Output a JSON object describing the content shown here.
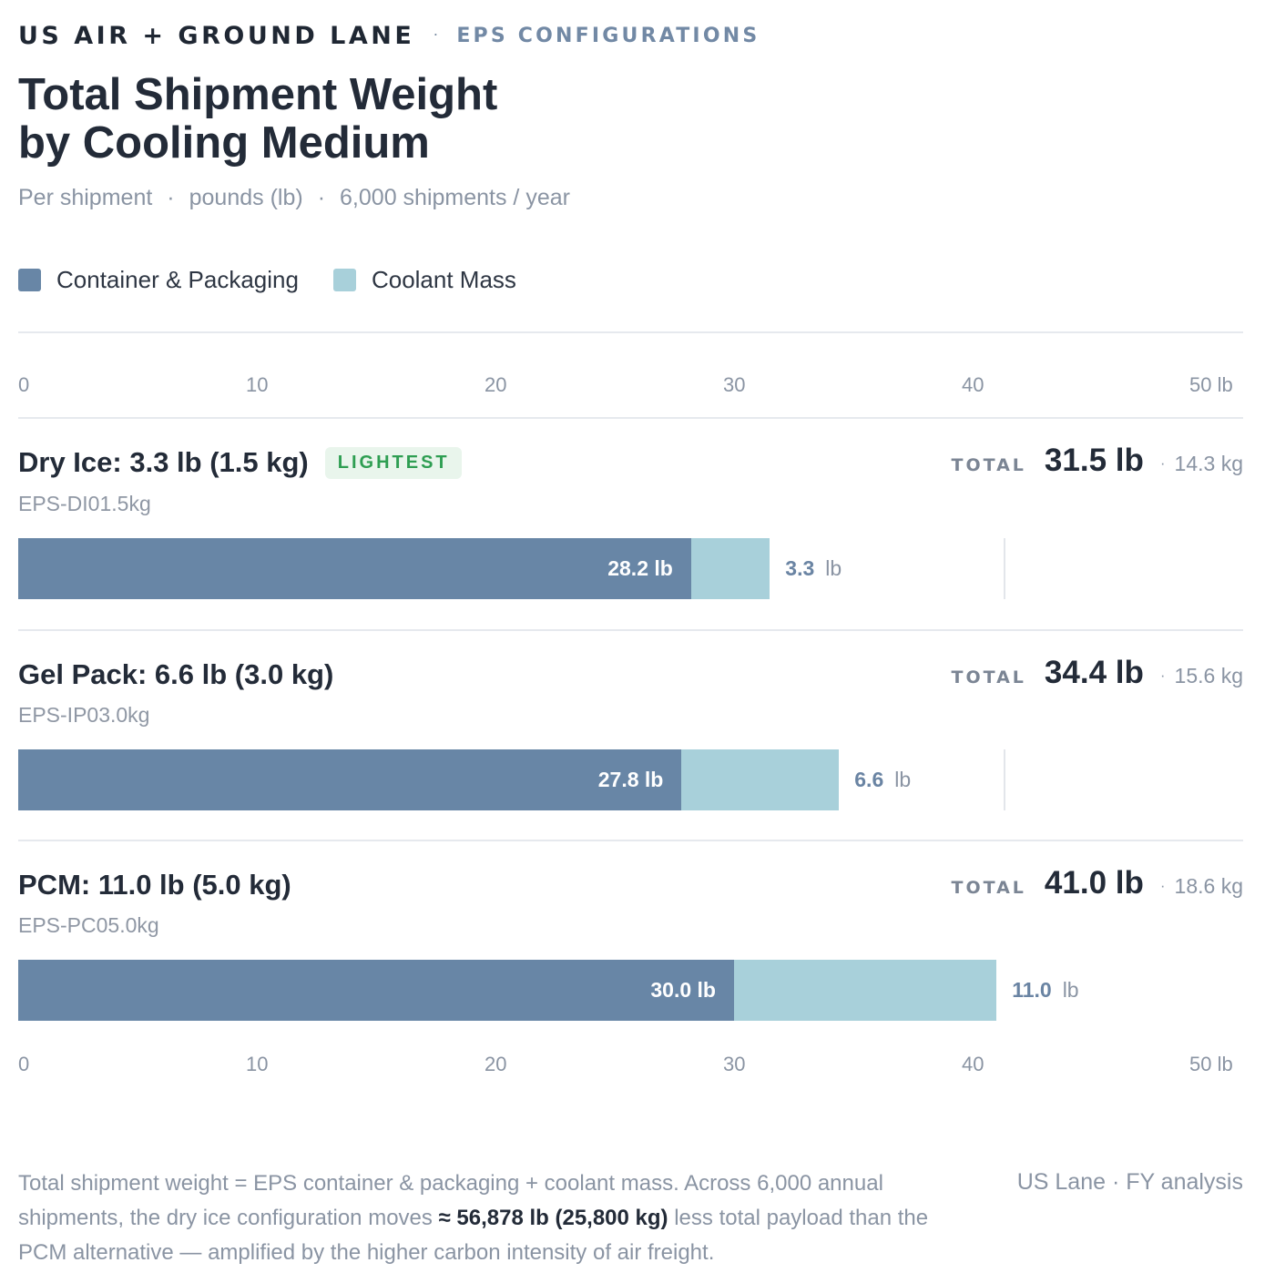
{
  "header": {
    "eyebrow": "US AIR + GROUND LANE",
    "eyebrow_sep": "·",
    "eyebrow_sub": "EPS CONFIGURATIONS",
    "title_line1": "Total Shipment Weight",
    "title_line2": "by Cooling Medium",
    "subtitle_parts": [
      "Per shipment",
      "pounds (lb)",
      "6,000 shipments / year"
    ],
    "subtitle_sep": "·"
  },
  "legend": {
    "items": [
      {
        "label": "Container & Packaging",
        "color": "#6886a6"
      },
      {
        "label": "Coolant Mass",
        "color": "#a8d0da"
      }
    ]
  },
  "axis": {
    "ticks": [
      "0",
      "10",
      "20",
      "30",
      "40",
      "50 lb"
    ]
  },
  "chart_data": {
    "type": "bar",
    "orientation": "horizontal",
    "stacked": true,
    "categories": [
      "Dry Ice: 3.3 lb (1.5 kg)",
      "Gel Pack: 6.6 lb (3.0 kg)",
      "PCM: 11.0 lb (5.0 kg)"
    ],
    "series": [
      {
        "name": "Container & Packaging",
        "values": [
          28.2,
          27.8,
          30.0
        ],
        "color": "#6886a6"
      },
      {
        "name": "Coolant Mass",
        "values": [
          3.3,
          6.6,
          11.0
        ],
        "color": "#a8d0da"
      }
    ],
    "xlim": [
      0,
      50
    ],
    "xticks": [
      0,
      10,
      20,
      30,
      40,
      50
    ],
    "unit": "lb",
    "reference_value": 41.0
  },
  "rows": [
    {
      "title": "Dry Ice: 3.3 lb (1.5 kg)",
      "badge": "LIGHTEST",
      "code": "EPS-DI01.5kg",
      "total_label": "TOTAL",
      "total_value": "31.5 lb",
      "total_sep": "·",
      "total_kg": "14.3 kg",
      "pkg_value": 28.2,
      "pkg_label": "28.2 lb",
      "coolant_value": 3.3,
      "coolant_label": "3.3",
      "coolant_unit": "lb"
    },
    {
      "title": "Gel Pack: 6.6 lb (3.0 kg)",
      "badge": "",
      "code": "EPS-IP03.0kg",
      "total_label": "TOTAL",
      "total_value": "34.4 lb",
      "total_sep": "·",
      "total_kg": "15.6 kg",
      "pkg_value": 27.8,
      "pkg_label": "27.8 lb",
      "coolant_value": 6.6,
      "coolant_label": "6.6",
      "coolant_unit": "lb"
    },
    {
      "title": "PCM: 11.0 lb (5.0 kg)",
      "badge": "",
      "code": "EPS-PC05.0kg",
      "total_label": "TOTAL",
      "total_value": "41.0 lb",
      "total_sep": "·",
      "total_kg": "18.6 kg",
      "pkg_value": 30.0,
      "pkg_label": "30.0 lb",
      "coolant_value": 11.0,
      "coolant_label": "11.0",
      "coolant_unit": "lb"
    }
  ],
  "footer": {
    "note_pre": "Total shipment weight = EPS container & packaging + coolant mass. Across 6,000 annual shipments, the dry ice configuration moves ",
    "note_bold": "≈ 56,878 lb (25,800 kg)",
    "note_post": " less total payload than the PCM alternative — amplified by the higher carbon intensity of air freight.",
    "meta": "US Lane · FY analysis"
  }
}
